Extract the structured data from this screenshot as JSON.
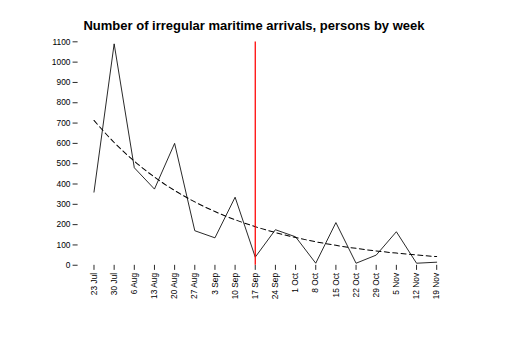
{
  "chart_data": {
    "type": "line",
    "title": "Number of irregular maritime arrivals, persons by week",
    "categories": [
      "23 Jul",
      "30 Jul",
      "6 Aug",
      "13 Aug",
      "20 Aug",
      "27 Aug",
      "3 Sep",
      "10 Sep",
      "17 Sep",
      "24 Sep",
      "1 Oct",
      "8 Oct",
      "15 Oct",
      "22 Oct",
      "29 Oct",
      "5 Nov",
      "12 Nov",
      "19 Nov"
    ],
    "series": [
      {
        "color": "#000000",
        "line_style": "solid",
        "values": [
          360,
          1090,
          480,
          375,
          600,
          170,
          135,
          335,
          40,
          175,
          140,
          10,
          210,
          10,
          50,
          165,
          10,
          15
        ]
      },
      {
        "color": "#000000",
        "line_style": "dashed",
        "values": [
          712.9,
          604.3,
          512.2,
          434.2,
          368.0,
          312.0,
          264.4,
          224.1,
          190.0,
          161.0,
          136.5,
          115.7,
          98.1,
          83.1,
          70.5,
          59.7,
          50.6,
          42.9
        ]
      }
    ],
    "vlines": [
      {
        "x": "17 Sep",
        "color": "#ff0000"
      }
    ],
    "ylim": [
      0,
      1100
    ],
    "yticks": [
      0,
      100,
      200,
      300,
      400,
      500,
      600,
      700,
      800,
      900,
      1000,
      1100
    ]
  }
}
